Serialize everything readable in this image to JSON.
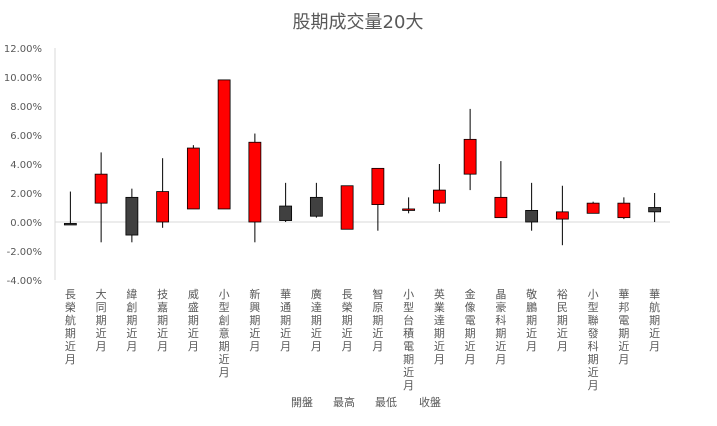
{
  "chart_data": {
    "type": "candlestick",
    "title": "股期成交量20大",
    "xlabel": "",
    "ylabel": "",
    "ylim": [
      -0.04,
      0.12
    ],
    "ytick_step": 0.02,
    "ytick_labels": [
      "-4.00%",
      "-2.00%",
      "0.00%",
      "2.00%",
      "4.00%",
      "6.00%",
      "8.00%",
      "10.00%",
      "12.00%"
    ],
    "grid": false,
    "legend": [
      "開盤",
      "最高",
      "最低",
      "收盤"
    ],
    "legend_position": "bottom",
    "colors": {
      "up": "#ff0000",
      "down": "#404040",
      "wick": "#000000",
      "axis": "#d9d9d9",
      "text": "#595959"
    },
    "categories": [
      "長榮航期近月",
      "大同期近月",
      "緯創期近月",
      "技嘉期近月",
      "威盛期近月",
      "小型創意期近月",
      "新興期近月",
      "華通期近月",
      "廣達期近月",
      "長榮期近月",
      "智原期近月",
      "小型台積電期近月",
      "英業達期近月",
      "金像電期近月",
      "晶豪科期近月",
      "敬鵬期近月",
      "裕民期近月",
      "小型聯發科期近月",
      "華邦電期近月",
      "華航期近月"
    ],
    "open": [
      -0.001,
      0.013,
      0.017,
      0.0,
      0.009,
      0.009,
      0.0,
      0.011,
      0.017,
      -0.005,
      0.012,
      0.008,
      0.013,
      0.033,
      0.003,
      0.008,
      0.002,
      0.006,
      0.003,
      0.01
    ],
    "high": [
      0.021,
      0.048,
      0.023,
      0.044,
      0.053,
      0.098,
      0.061,
      0.027,
      0.027,
      0.025,
      0.037,
      0.017,
      0.04,
      0.078,
      0.042,
      0.027,
      0.025,
      0.014,
      0.017,
      0.02
    ],
    "low": [
      -0.002,
      -0.014,
      -0.014,
      -0.004,
      0.009,
      0.009,
      -0.014,
      0.0,
      0.003,
      -0.005,
      -0.006,
      0.006,
      0.007,
      0.022,
      0.003,
      -0.006,
      -0.016,
      0.006,
      0.002,
      0.0
    ],
    "close": [
      -0.002,
      0.033,
      -0.009,
      0.021,
      0.051,
      0.098,
      0.055,
      0.001,
      0.004,
      0.025,
      0.037,
      0.009,
      0.022,
      0.057,
      0.017,
      0.0,
      0.007,
      0.013,
      0.013,
      0.007
    ]
  }
}
